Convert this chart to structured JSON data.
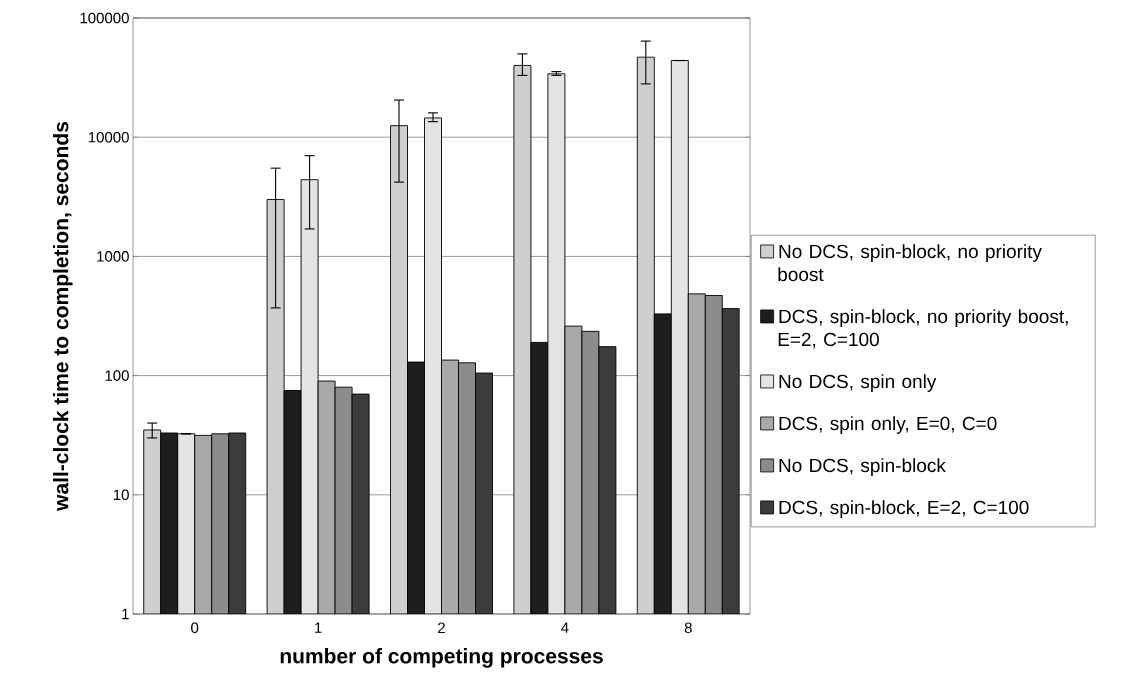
{
  "chart_data": {
    "type": "bar",
    "xlabel": "number of competing processes",
    "ylabel": "wall-clock time to completion, seconds",
    "categories": [
      "0",
      "1",
      "2",
      "4",
      "8"
    ],
    "log": "y",
    "ylim": [
      1,
      100000
    ],
    "yticks": [
      1,
      10,
      100,
      1000,
      10000,
      100000
    ],
    "grid": "y",
    "legend": "right",
    "series": [
      {
        "name": "No DCS, spin-block, no priority boost",
        "color": "#cfcfcf",
        "values": [
          35,
          3000,
          12500,
          40000,
          47000
        ],
        "errors": [
          [
            30,
            40
          ],
          [
            370,
            5500
          ],
          [
            4200,
            20500
          ],
          [
            33000,
            50000
          ],
          [
            28000,
            64000
          ]
        ]
      },
      {
        "name": "DCS, spin-block, no priority boost, E=2, C=100",
        "color": "#1e1e1e",
        "values": [
          33,
          75,
          130,
          190,
          330
        ]
      },
      {
        "name": "No DCS, spin only",
        "color": "#e4e4e4",
        "values": [
          32.5,
          4400,
          14500,
          34000,
          44000
        ],
        "errors": [
          null,
          [
            1700,
            7000
          ],
          [
            13500,
            16000
          ],
          [
            33000,
            35500
          ],
          null
        ]
      },
      {
        "name": "DCS, spin only, E=0, C=0",
        "color": "#a9a9a9",
        "values": [
          31.5,
          90,
          135,
          260,
          485
        ]
      },
      {
        "name": "No DCS, spin-block",
        "color": "#8c8c8c",
        "values": [
          32.5,
          80,
          128,
          235,
          470
        ]
      },
      {
        "name": "DCS, spin-block, E=2, C=100",
        "color": "#3c3c3c",
        "values": [
          33,
          70,
          105,
          175,
          365
        ]
      }
    ]
  }
}
